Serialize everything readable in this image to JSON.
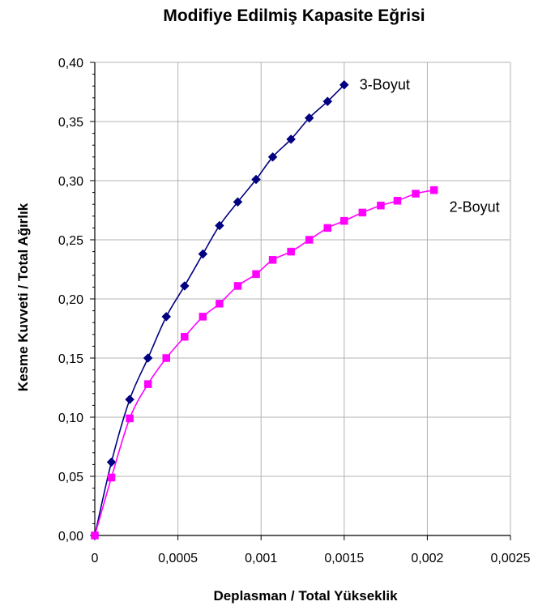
{
  "chart_data": {
    "type": "line",
    "title": "Modifiye Edilmiş Kapasite Eğrisi",
    "xlabel": "Deplasman / Total Yükseklik",
    "ylabel": "Kesme Kuvveti / Total Ağırlık",
    "xlim": [
      0,
      0.0025
    ],
    "ylim": [
      0,
      0.4
    ],
    "x_ticks": [
      0,
      0.0005,
      0.001,
      0.0015,
      0.002,
      0.0025
    ],
    "x_tick_labels": [
      "0",
      "0,0005",
      "0,001",
      "0,0015",
      "0,002",
      "0,0025"
    ],
    "y_ticks": [
      0,
      0.05,
      0.1,
      0.15,
      0.2,
      0.25,
      0.3,
      0.35,
      0.4
    ],
    "y_tick_labels": [
      "0,00",
      "0,05",
      "0,10",
      "0,15",
      "0,20",
      "0,25",
      "0,30",
      "0,35",
      "0,40"
    ],
    "grid": true,
    "series": [
      {
        "name": "3-Boyut",
        "color": "#000080",
        "marker": "diamond",
        "x": [
          0,
          0.0001,
          0.00021,
          0.00032,
          0.00043,
          0.00054,
          0.00065,
          0.00075,
          0.00086,
          0.00097,
          0.00107,
          0.00118,
          0.00129,
          0.0014,
          0.0015
        ],
        "y": [
          0,
          0.062,
          0.115,
          0.15,
          0.185,
          0.211,
          0.238,
          0.262,
          0.282,
          0.301,
          0.32,
          0.335,
          0.353,
          0.367,
          0.381
        ]
      },
      {
        "name": "2-Boyut",
        "color": "#ff00ff",
        "marker": "square",
        "x": [
          0,
          0.0001,
          0.00021,
          0.00032,
          0.00043,
          0.00054,
          0.00065,
          0.00075,
          0.00086,
          0.00097,
          0.00107,
          0.00118,
          0.00129,
          0.0014,
          0.0015,
          0.00161,
          0.00172,
          0.00182,
          0.00193,
          0.00204
        ],
        "y": [
          0,
          0.049,
          0.099,
          0.128,
          0.15,
          0.168,
          0.185,
          0.196,
          0.211,
          0.221,
          0.233,
          0.24,
          0.25,
          0.26,
          0.266,
          0.273,
          0.279,
          0.283,
          0.289,
          0.292
        ]
      }
    ]
  }
}
